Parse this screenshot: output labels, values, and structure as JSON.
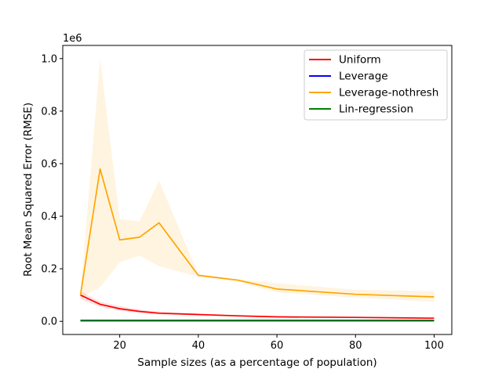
{
  "chart_data": {
    "type": "line",
    "xlabel": "Sample sizes (as a percentage of population)",
    "ylabel": "Root Mean Squared Error (RMSE)",
    "y_offset_label": "1e6",
    "xlim": [
      5.5,
      104.5
    ],
    "ylim": [
      -0.05,
      1.05
    ],
    "x_ticks": [
      20,
      40,
      60,
      80,
      100
    ],
    "y_ticks": [
      0.0,
      0.2,
      0.4,
      0.6,
      0.8,
      1.0
    ],
    "y_tick_labels": [
      "0.0",
      "0.2",
      "0.4",
      "0.6",
      "0.8",
      "1.0"
    ],
    "grid": false,
    "legend_position": "upper right",
    "x": [
      10,
      15,
      20,
      25,
      30,
      40,
      50,
      60,
      80,
      100
    ],
    "series": [
      {
        "name": "Uniform",
        "color": "#ff0000",
        "values": [
          0.1,
          0.065,
          0.048,
          0.038,
          0.031,
          0.026,
          0.021,
          0.017,
          0.015,
          0.012
        ],
        "band_low": [
          0.085,
          0.055,
          0.04,
          0.032,
          0.026,
          0.022,
          0.018,
          0.015,
          0.013,
          0.01
        ],
        "band_high": [
          0.115,
          0.075,
          0.058,
          0.045,
          0.036,
          0.03,
          0.024,
          0.02,
          0.017,
          0.014
        ]
      },
      {
        "name": "Leverage",
        "color": "#0000ff",
        "values": [
          0.002,
          0.002,
          0.002,
          0.002,
          0.002,
          0.002,
          0.002,
          0.002,
          0.002,
          0.002
        ]
      },
      {
        "name": "Leverage-nothresh",
        "color": "#ffa500",
        "values": [
          0.1,
          0.58,
          0.31,
          0.32,
          0.375,
          0.175,
          0.157,
          0.123,
          0.103,
          0.093
        ],
        "band_low": [
          0.09,
          0.13,
          0.225,
          0.25,
          0.21,
          0.17,
          0.15,
          0.11,
          0.09,
          0.075
        ],
        "band_high": [
          0.105,
          1.0,
          0.39,
          0.38,
          0.535,
          0.18,
          0.16,
          0.145,
          0.12,
          0.115
        ]
      },
      {
        "name": "Lin-regression",
        "color": "#008000",
        "values": [
          0.004,
          0.004,
          0.004,
          0.004,
          0.004,
          0.004,
          0.004,
          0.004,
          0.004,
          0.004
        ]
      }
    ]
  }
}
